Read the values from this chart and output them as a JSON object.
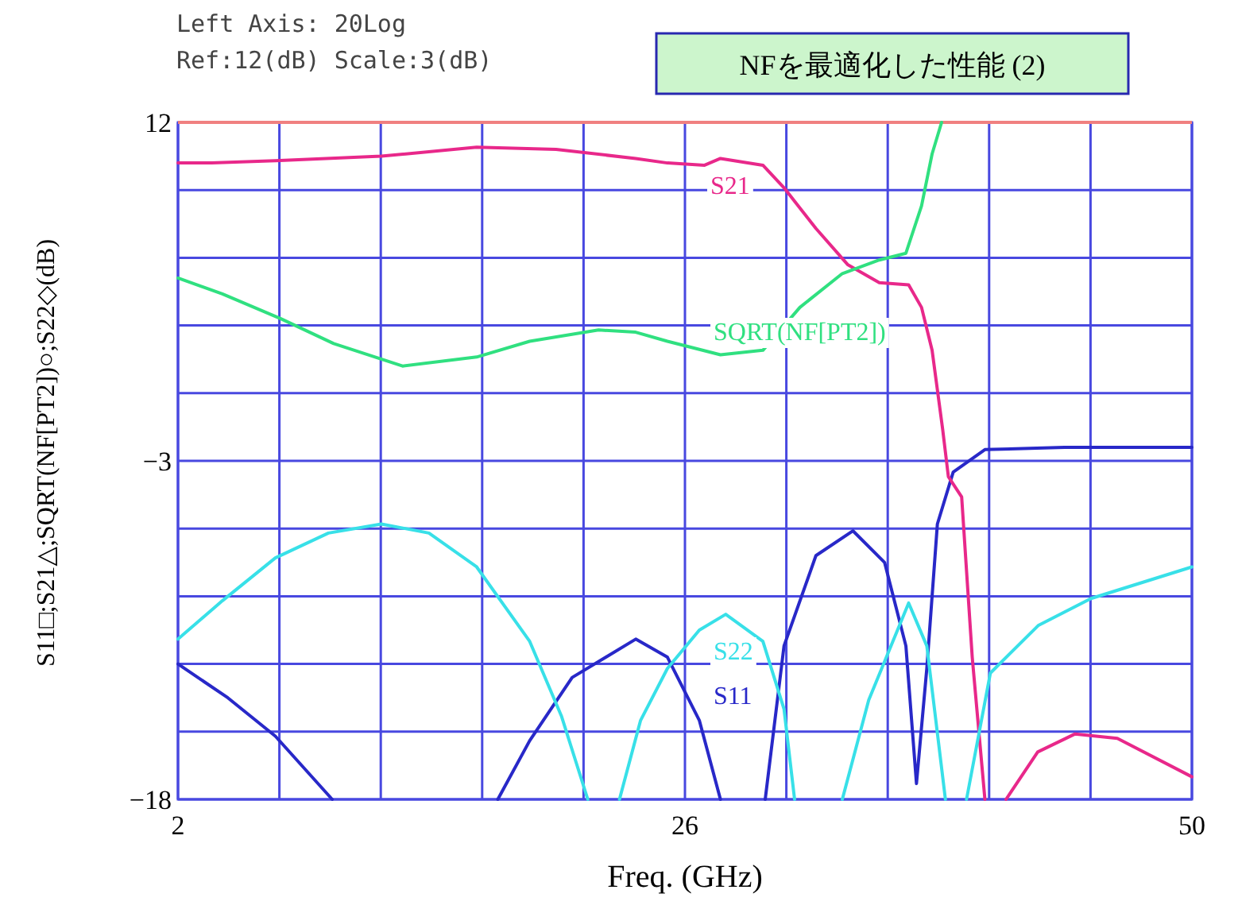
{
  "chart_data": {
    "type": "line",
    "title": "NFを最適化した性能 (2)",
    "xlabel": "Freq. (GHz)",
    "ylabel": "S11□;S21△;SQRT(NF[PT2])○;S22◇(dB)",
    "annotations": [
      "Left Axis: 20Log",
      "Ref:12(dB) Scale:3(dB)"
    ],
    "xlim": [
      2,
      50
    ],
    "ylim": [
      -18,
      12
    ],
    "xticks": [
      2,
      {
        "value": 6.8,
        "label": null
      },
      {
        "value": 11.6,
        "label": null
      },
      {
        "value": 16.4,
        "label": null
      },
      {
        "value": 21.2,
        "label": null
      },
      26,
      {
        "value": 30.8,
        "label": null
      },
      {
        "value": 35.6,
        "label": null
      },
      {
        "value": 40.4,
        "label": null
      },
      {
        "value": 45.2,
        "label": null
      },
      50
    ],
    "yticks": [
      12,
      {
        "value": 9,
        "label": null
      },
      {
        "value": 6,
        "label": null
      },
      {
        "value": 3,
        "label": null
      },
      {
        "value": 0,
        "label": null
      },
      -3,
      {
        "value": -6,
        "label": null
      },
      {
        "value": -9,
        "label": null
      },
      {
        "value": -12,
        "label": null
      },
      {
        "value": -15,
        "label": null
      },
      -18
    ],
    "grid": true,
    "ref_lines": [
      {
        "axis": "y",
        "value": 12,
        "label": null,
        "color": "#f08080"
      }
    ],
    "series": [
      {
        "name": "S11",
        "color": "#2828c8",
        "x": [
          2.0,
          4.36,
          6.61,
          9.3,
          17.14,
          18.65,
          20.66,
          23.67,
          25.17,
          26.68,
          27.68,
          29.8,
          30.69,
          32.2,
          33.95,
          35.45,
          36.46,
          36.96,
          37.45,
          37.95,
          38.7,
          40.2,
          43.97,
          50.0
        ],
        "values": [
          -12.0,
          -13.5,
          -15.2,
          -18,
          -18,
          -15.4,
          -12.6,
          -10.9,
          -11.7,
          -14.5,
          -18,
          -18,
          -11.2,
          -7.2,
          -6.1,
          -7.5,
          -11.2,
          -17.3,
          -12.2,
          -5.8,
          -3.5,
          -2.5,
          -2.4,
          -2.4
        ]
      },
      {
        "name": "S21",
        "color": "#e8288a",
        "x": [
          2.0,
          3.6,
          6.61,
          11.63,
          16.14,
          19.9,
          23.67,
          25.17,
          26.93,
          27.68,
          29.69,
          30.69,
          32.2,
          33.7,
          35.2,
          36.59,
          37.2,
          37.7,
          38.2,
          38.47,
          39.1,
          39.6,
          40.2,
          41.2,
          42.7,
          44.47,
          46.47,
          50.0
        ],
        "values": [
          10.2,
          10.2,
          10.3,
          10.5,
          10.9,
          10.8,
          10.4,
          10.2,
          10.1,
          10.4,
          10.1,
          9.1,
          7.3,
          5.7,
          4.9,
          4.8,
          3.8,
          1.9,
          -1.6,
          -3.7,
          -4.6,
          -11.7,
          -18,
          -18,
          -15.9,
          -15.1,
          -15.3,
          -17.0
        ]
      },
      {
        "name": "SQRT(NF[PT2])",
        "color": "#30e080",
        "x": [
          2.0,
          4.1,
          6.87,
          9.37,
          12.63,
          16.14,
          18.65,
          21.91,
          23.67,
          25.17,
          27.68,
          29.69,
          31.44,
          33.45,
          35.2,
          36.46,
          37.2,
          37.7,
          38.15
        ],
        "values": [
          5.1,
          4.4,
          3.3,
          2.2,
          1.2,
          1.6,
          2.3,
          2.8,
          2.7,
          2.3,
          1.7,
          1.9,
          3.8,
          5.3,
          5.9,
          6.2,
          8.3,
          10.6,
          12.0
        ]
      },
      {
        "name": "S22",
        "color": "#38e0e8",
        "x": [
          2.0,
          4.1,
          6.61,
          9.12,
          11.63,
          13.88,
          16.14,
          18.65,
          20.15,
          21.4,
          22.9,
          23.9,
          25.17,
          26.68,
          27.93,
          29.69,
          30.69,
          31.19,
          33.45,
          34.7,
          36.59,
          37.45,
          38.33,
          39.33,
          40.46,
          42.72,
          45.22,
          50.0
        ],
        "values": [
          -10.9,
          -9.2,
          -7.3,
          -6.2,
          -5.8,
          -6.2,
          -7.7,
          -11.0,
          -14.3,
          -18,
          -18,
          -14.5,
          -12.2,
          -10.5,
          -9.8,
          -11.0,
          -14.0,
          -18,
          -18,
          -13.6,
          -9.3,
          -11.2,
          -18,
          -18,
          -12.4,
          -10.3,
          -9.1,
          -7.7
        ]
      }
    ]
  }
}
